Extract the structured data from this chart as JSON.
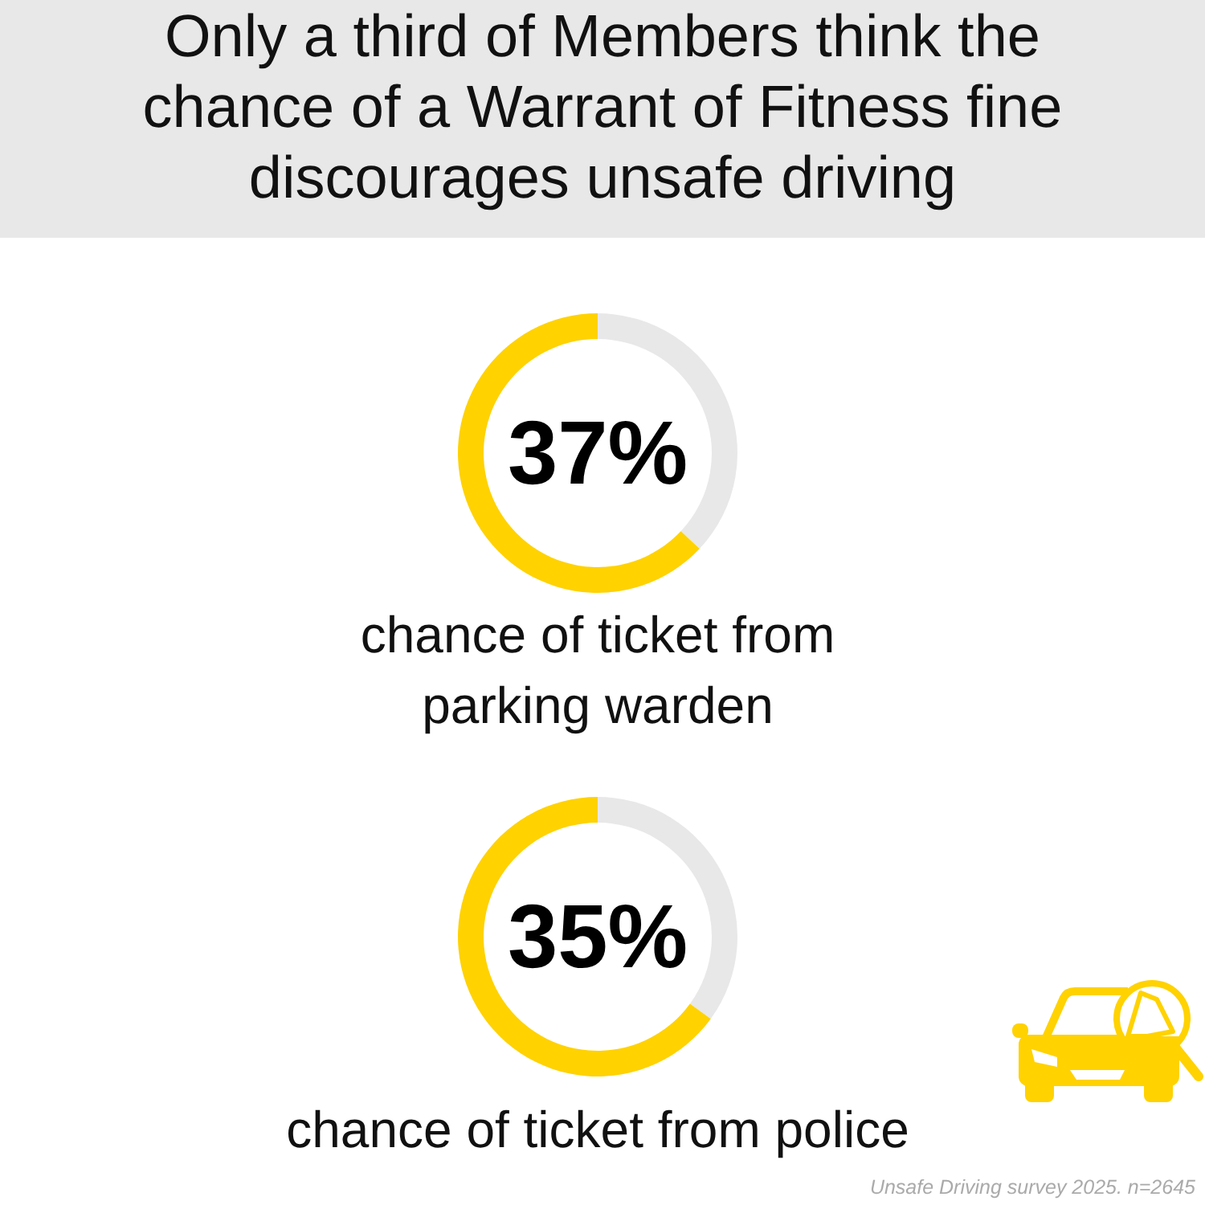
{
  "chart_data": [
    {
      "type": "donut",
      "title": "Only a third of Members think the chance of a Warrant of Fitness fine discourages unsafe driving",
      "categories": [
        null,
        null
      ],
      "values": [
        37,
        63
      ],
      "colors": [
        "#e8e8e8",
        "#ffd200"
      ],
      "value_labels": [
        "37%",
        null
      ],
      "annotations": [
        "chance of ticket from parking warden"
      ]
    },
    {
      "type": "donut",
      "categories": [
        null,
        null
      ],
      "values": [
        35,
        65
      ],
      "colors": [
        "#e8e8e8",
        "#ffd200"
      ],
      "value_labels": [
        "35%",
        null
      ],
      "annotations": [
        "chance of ticket from police",
        "Unsafe Driving survey 2025. n=2645"
      ]
    }
  ]
}
